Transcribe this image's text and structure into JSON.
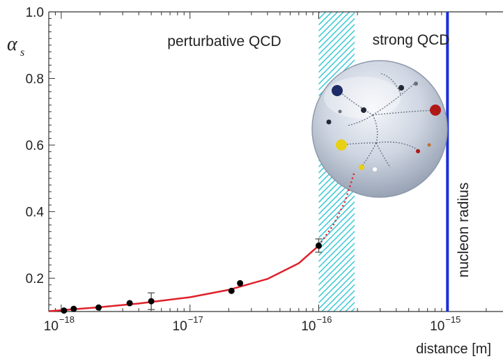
{
  "chart_data": {
    "type": "scatter",
    "xlabel": "distance [m]",
    "ylabel": "α",
    "ylabel_subscript": "s",
    "x_scale": "log",
    "xlim": [
      8e-19,
      2.7e-15
    ],
    "ylim": [
      0.1,
      1.0
    ],
    "x_ticks": [
      {
        "value": 1e-18,
        "mantissa": "10",
        "exponent": "−18"
      },
      {
        "value": 1e-17,
        "mantissa": "10",
        "exponent": "−17"
      },
      {
        "value": 1e-16,
        "mantissa": "10",
        "exponent": "−16"
      },
      {
        "value": 1e-15,
        "mantissa": "10",
        "exponent": "−15"
      }
    ],
    "y_ticks": [
      {
        "value": 0.2,
        "label": "0.2"
      },
      {
        "value": 0.4,
        "label": "0.4"
      },
      {
        "value": 0.6,
        "label": "0.6"
      },
      {
        "value": 0.8,
        "label": "0.8"
      },
      {
        "value": 1.0,
        "label": "1.0"
      }
    ],
    "grid": false,
    "series": [
      {
        "points": [
          {
            "x": 1.05e-18,
            "y": 0.103
          },
          {
            "x": 1.25e-18,
            "y": 0.108
          },
          {
            "x": 1.95e-18,
            "y": 0.112
          },
          {
            "x": 3.4e-18,
            "y": 0.125
          },
          {
            "x": 5e-18,
            "y": 0.131,
            "err": 0.025
          },
          {
            "x": 2.1e-17,
            "y": 0.162
          },
          {
            "x": 2.45e-17,
            "y": 0.185
          },
          {
            "x": 1e-16,
            "y": 0.298,
            "err": 0.02
          }
        ]
      }
    ],
    "fit_curve": {
      "color": "#e0202a",
      "solid": [
        {
          "x": 8e-19,
          "y": 0.101
        },
        {
          "x": 1e-18,
          "y": 0.104
        },
        {
          "x": 2e-18,
          "y": 0.113
        },
        {
          "x": 4e-18,
          "y": 0.124
        },
        {
          "x": 1e-17,
          "y": 0.143
        },
        {
          "x": 2e-17,
          "y": 0.165
        },
        {
          "x": 4e-17,
          "y": 0.198
        },
        {
          "x": 7e-17,
          "y": 0.245
        },
        {
          "x": 1e-16,
          "y": 0.298
        }
      ],
      "dotted": [
        {
          "x": 1e-16,
          "y": 0.298
        },
        {
          "x": 1.3e-16,
          "y": 0.36
        },
        {
          "x": 1.6e-16,
          "y": 0.43
        },
        {
          "x": 1.9e-16,
          "y": 0.52
        }
      ]
    },
    "regions": {
      "perturbative_label": "perturbative QCD",
      "strong_label": "strong QCD",
      "band": {
        "x_from": 1e-16,
        "x_to": 1.9e-16,
        "color": "#39c9d6"
      }
    },
    "nucleon_line": {
      "x": 1e-15,
      "label": "nucleon radius",
      "color": "#1b2fd8"
    }
  }
}
